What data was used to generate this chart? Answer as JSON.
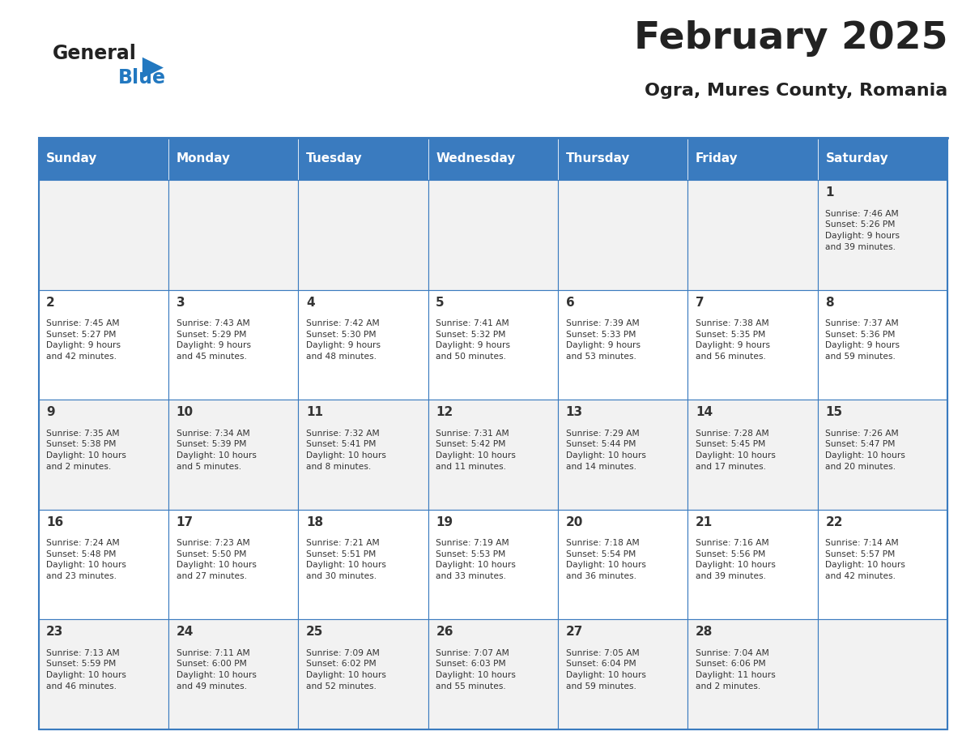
{
  "title": "February 2025",
  "subtitle": "Ogra, Mures County, Romania",
  "days_of_week": [
    "Sunday",
    "Monday",
    "Tuesday",
    "Wednesday",
    "Thursday",
    "Friday",
    "Saturday"
  ],
  "header_bg": "#3a7bbf",
  "header_text": "#ffffff",
  "cell_bg_light": "#f2f2f2",
  "cell_bg_white": "#ffffff",
  "border_color": "#3a7bbf",
  "text_color": "#333333",
  "title_color": "#222222",
  "subtitle_color": "#222222",
  "logo_general_color": "#222222",
  "logo_blue_color": "#2278c0",
  "calendar_data": [
    [
      {
        "day": null,
        "info": ""
      },
      {
        "day": null,
        "info": ""
      },
      {
        "day": null,
        "info": ""
      },
      {
        "day": null,
        "info": ""
      },
      {
        "day": null,
        "info": ""
      },
      {
        "day": null,
        "info": ""
      },
      {
        "day": 1,
        "info": "Sunrise: 7:46 AM\nSunset: 5:26 PM\nDaylight: 9 hours\nand 39 minutes."
      }
    ],
    [
      {
        "day": 2,
        "info": "Sunrise: 7:45 AM\nSunset: 5:27 PM\nDaylight: 9 hours\nand 42 minutes."
      },
      {
        "day": 3,
        "info": "Sunrise: 7:43 AM\nSunset: 5:29 PM\nDaylight: 9 hours\nand 45 minutes."
      },
      {
        "day": 4,
        "info": "Sunrise: 7:42 AM\nSunset: 5:30 PM\nDaylight: 9 hours\nand 48 minutes."
      },
      {
        "day": 5,
        "info": "Sunrise: 7:41 AM\nSunset: 5:32 PM\nDaylight: 9 hours\nand 50 minutes."
      },
      {
        "day": 6,
        "info": "Sunrise: 7:39 AM\nSunset: 5:33 PM\nDaylight: 9 hours\nand 53 minutes."
      },
      {
        "day": 7,
        "info": "Sunrise: 7:38 AM\nSunset: 5:35 PM\nDaylight: 9 hours\nand 56 minutes."
      },
      {
        "day": 8,
        "info": "Sunrise: 7:37 AM\nSunset: 5:36 PM\nDaylight: 9 hours\nand 59 minutes."
      }
    ],
    [
      {
        "day": 9,
        "info": "Sunrise: 7:35 AM\nSunset: 5:38 PM\nDaylight: 10 hours\nand 2 minutes."
      },
      {
        "day": 10,
        "info": "Sunrise: 7:34 AM\nSunset: 5:39 PM\nDaylight: 10 hours\nand 5 minutes."
      },
      {
        "day": 11,
        "info": "Sunrise: 7:32 AM\nSunset: 5:41 PM\nDaylight: 10 hours\nand 8 minutes."
      },
      {
        "day": 12,
        "info": "Sunrise: 7:31 AM\nSunset: 5:42 PM\nDaylight: 10 hours\nand 11 minutes."
      },
      {
        "day": 13,
        "info": "Sunrise: 7:29 AM\nSunset: 5:44 PM\nDaylight: 10 hours\nand 14 minutes."
      },
      {
        "day": 14,
        "info": "Sunrise: 7:28 AM\nSunset: 5:45 PM\nDaylight: 10 hours\nand 17 minutes."
      },
      {
        "day": 15,
        "info": "Sunrise: 7:26 AM\nSunset: 5:47 PM\nDaylight: 10 hours\nand 20 minutes."
      }
    ],
    [
      {
        "day": 16,
        "info": "Sunrise: 7:24 AM\nSunset: 5:48 PM\nDaylight: 10 hours\nand 23 minutes."
      },
      {
        "day": 17,
        "info": "Sunrise: 7:23 AM\nSunset: 5:50 PM\nDaylight: 10 hours\nand 27 minutes."
      },
      {
        "day": 18,
        "info": "Sunrise: 7:21 AM\nSunset: 5:51 PM\nDaylight: 10 hours\nand 30 minutes."
      },
      {
        "day": 19,
        "info": "Sunrise: 7:19 AM\nSunset: 5:53 PM\nDaylight: 10 hours\nand 33 minutes."
      },
      {
        "day": 20,
        "info": "Sunrise: 7:18 AM\nSunset: 5:54 PM\nDaylight: 10 hours\nand 36 minutes."
      },
      {
        "day": 21,
        "info": "Sunrise: 7:16 AM\nSunset: 5:56 PM\nDaylight: 10 hours\nand 39 minutes."
      },
      {
        "day": 22,
        "info": "Sunrise: 7:14 AM\nSunset: 5:57 PM\nDaylight: 10 hours\nand 42 minutes."
      }
    ],
    [
      {
        "day": 23,
        "info": "Sunrise: 7:13 AM\nSunset: 5:59 PM\nDaylight: 10 hours\nand 46 minutes."
      },
      {
        "day": 24,
        "info": "Sunrise: 7:11 AM\nSunset: 6:00 PM\nDaylight: 10 hours\nand 49 minutes."
      },
      {
        "day": 25,
        "info": "Sunrise: 7:09 AM\nSunset: 6:02 PM\nDaylight: 10 hours\nand 52 minutes."
      },
      {
        "day": 26,
        "info": "Sunrise: 7:07 AM\nSunset: 6:03 PM\nDaylight: 10 hours\nand 55 minutes."
      },
      {
        "day": 27,
        "info": "Sunrise: 7:05 AM\nSunset: 6:04 PM\nDaylight: 10 hours\nand 59 minutes."
      },
      {
        "day": 28,
        "info": "Sunrise: 7:04 AM\nSunset: 6:06 PM\nDaylight: 11 hours\nand 2 minutes."
      },
      {
        "day": null,
        "info": ""
      }
    ]
  ]
}
